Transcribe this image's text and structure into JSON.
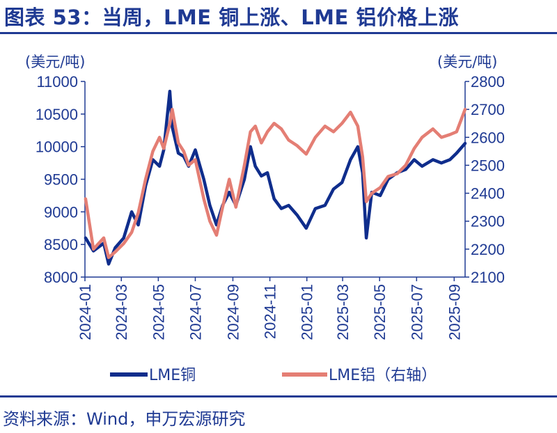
{
  "title": "图表 53：当周，LME 铜上涨、LME 铝价格上涨",
  "source": "资料来源：Wind，申万宏源研究",
  "chart_data": {
    "type": "line",
    "left_unit": "(美元/吨)",
    "right_unit": "(美元/吨)",
    "y_left": {
      "min": 8000,
      "max": 11000,
      "ticks": [
        8000,
        8500,
        9000,
        9500,
        10000,
        10500,
        11000
      ]
    },
    "y_right": {
      "min": 2100,
      "max": 2800,
      "ticks": [
        2100,
        2200,
        2300,
        2400,
        2500,
        2600,
        2700,
        2800
      ]
    },
    "x_ticks": [
      "2024-01",
      "2024-03",
      "2024-05",
      "2024-07",
      "2024-09",
      "2024-11",
      "2025-01",
      "2025-03",
      "2025-05",
      "2025-07",
      "2025-09"
    ],
    "x_range": [
      "2024-01-01",
      "2025-09-19"
    ],
    "series": [
      {
        "name": "LME铜",
        "axis": "left",
        "color": "#0f2d8c",
        "points": [
          [
            "2024-01-02",
            8600
          ],
          [
            "2024-01-15",
            8400
          ],
          [
            "2024-02-01",
            8520
          ],
          [
            "2024-02-09",
            8200
          ],
          [
            "2024-02-20",
            8450
          ],
          [
            "2024-03-05",
            8600
          ],
          [
            "2024-03-18",
            9000
          ],
          [
            "2024-03-29",
            8800
          ],
          [
            "2024-04-10",
            9400
          ],
          [
            "2024-04-22",
            9800
          ],
          [
            "2024-05-03",
            9700
          ],
          [
            "2024-05-10",
            9950
          ],
          [
            "2024-05-20",
            10850
          ],
          [
            "2024-05-24",
            10300
          ],
          [
            "2024-06-03",
            9900
          ],
          [
            "2024-06-12",
            9850
          ],
          [
            "2024-06-20",
            9700
          ],
          [
            "2024-07-01",
            9950
          ],
          [
            "2024-07-15",
            9500
          ],
          [
            "2024-07-25",
            9100
          ],
          [
            "2024-08-05",
            8800
          ],
          [
            "2024-08-15",
            9100
          ],
          [
            "2024-08-26",
            9300
          ],
          [
            "2024-09-06",
            9100
          ],
          [
            "2024-09-20",
            9500
          ],
          [
            "2024-09-30",
            10000
          ],
          [
            "2024-10-08",
            9700
          ],
          [
            "2024-10-18",
            9550
          ],
          [
            "2024-10-28",
            9600
          ],
          [
            "2024-11-08",
            9200
          ],
          [
            "2024-11-20",
            9050
          ],
          [
            "2024-12-02",
            9100
          ],
          [
            "2024-12-16",
            8950
          ],
          [
            "2024-12-31",
            8750
          ],
          [
            "2025-01-15",
            9050
          ],
          [
            "2025-01-31",
            9100
          ],
          [
            "2025-02-14",
            9350
          ],
          [
            "2025-02-28",
            9450
          ],
          [
            "2025-03-14",
            9800
          ],
          [
            "2025-03-26",
            10000
          ],
          [
            "2025-04-03",
            9600
          ],
          [
            "2025-04-09",
            8600
          ],
          [
            "2025-04-18",
            9300
          ],
          [
            "2025-05-02",
            9250
          ],
          [
            "2025-05-15",
            9500
          ],
          [
            "2025-05-30",
            9600
          ],
          [
            "2025-06-13",
            9650
          ],
          [
            "2025-06-27",
            9800
          ],
          [
            "2025-07-10",
            9700
          ],
          [
            "2025-07-28",
            9800
          ],
          [
            "2025-08-11",
            9750
          ],
          [
            "2025-08-25",
            9800
          ],
          [
            "2025-09-05",
            9900
          ],
          [
            "2025-09-19",
            10050
          ]
        ]
      },
      {
        "name": "LME铝（右轴）",
        "axis": "right",
        "color": "#e47e74",
        "points": [
          [
            "2024-01-02",
            2380
          ],
          [
            "2024-01-15",
            2200
          ],
          [
            "2024-02-01",
            2240
          ],
          [
            "2024-02-09",
            2170
          ],
          [
            "2024-02-20",
            2190
          ],
          [
            "2024-03-05",
            2220
          ],
          [
            "2024-03-18",
            2260
          ],
          [
            "2024-03-29",
            2330
          ],
          [
            "2024-04-10",
            2450
          ],
          [
            "2024-04-22",
            2550
          ],
          [
            "2024-05-03",
            2600
          ],
          [
            "2024-05-10",
            2560
          ],
          [
            "2024-05-20",
            2650
          ],
          [
            "2024-05-24",
            2700
          ],
          [
            "2024-06-03",
            2580
          ],
          [
            "2024-06-12",
            2550
          ],
          [
            "2024-06-20",
            2500
          ],
          [
            "2024-07-01",
            2520
          ],
          [
            "2024-07-15",
            2380
          ],
          [
            "2024-07-25",
            2300
          ],
          [
            "2024-08-05",
            2250
          ],
          [
            "2024-08-15",
            2350
          ],
          [
            "2024-08-26",
            2450
          ],
          [
            "2024-09-06",
            2350
          ],
          [
            "2024-09-20",
            2500
          ],
          [
            "2024-09-30",
            2620
          ],
          [
            "2024-10-08",
            2640
          ],
          [
            "2024-10-18",
            2580
          ],
          [
            "2024-10-28",
            2620
          ],
          [
            "2024-11-08",
            2650
          ],
          [
            "2024-11-20",
            2630
          ],
          [
            "2024-12-02",
            2590
          ],
          [
            "2024-12-16",
            2570
          ],
          [
            "2024-12-31",
            2540
          ],
          [
            "2025-01-15",
            2600
          ],
          [
            "2025-01-31",
            2640
          ],
          [
            "2025-02-14",
            2620
          ],
          [
            "2025-02-28",
            2650
          ],
          [
            "2025-03-14",
            2690
          ],
          [
            "2025-03-26",
            2640
          ],
          [
            "2025-04-03",
            2530
          ],
          [
            "2025-04-09",
            2370
          ],
          [
            "2025-04-18",
            2400
          ],
          [
            "2025-05-02",
            2420
          ],
          [
            "2025-05-15",
            2460
          ],
          [
            "2025-05-30",
            2470
          ],
          [
            "2025-06-13",
            2500
          ],
          [
            "2025-06-27",
            2560
          ],
          [
            "2025-07-10",
            2600
          ],
          [
            "2025-07-28",
            2630
          ],
          [
            "2025-08-11",
            2600
          ],
          [
            "2025-08-25",
            2610
          ],
          [
            "2025-09-05",
            2620
          ],
          [
            "2025-09-19",
            2700
          ]
        ]
      }
    ]
  }
}
